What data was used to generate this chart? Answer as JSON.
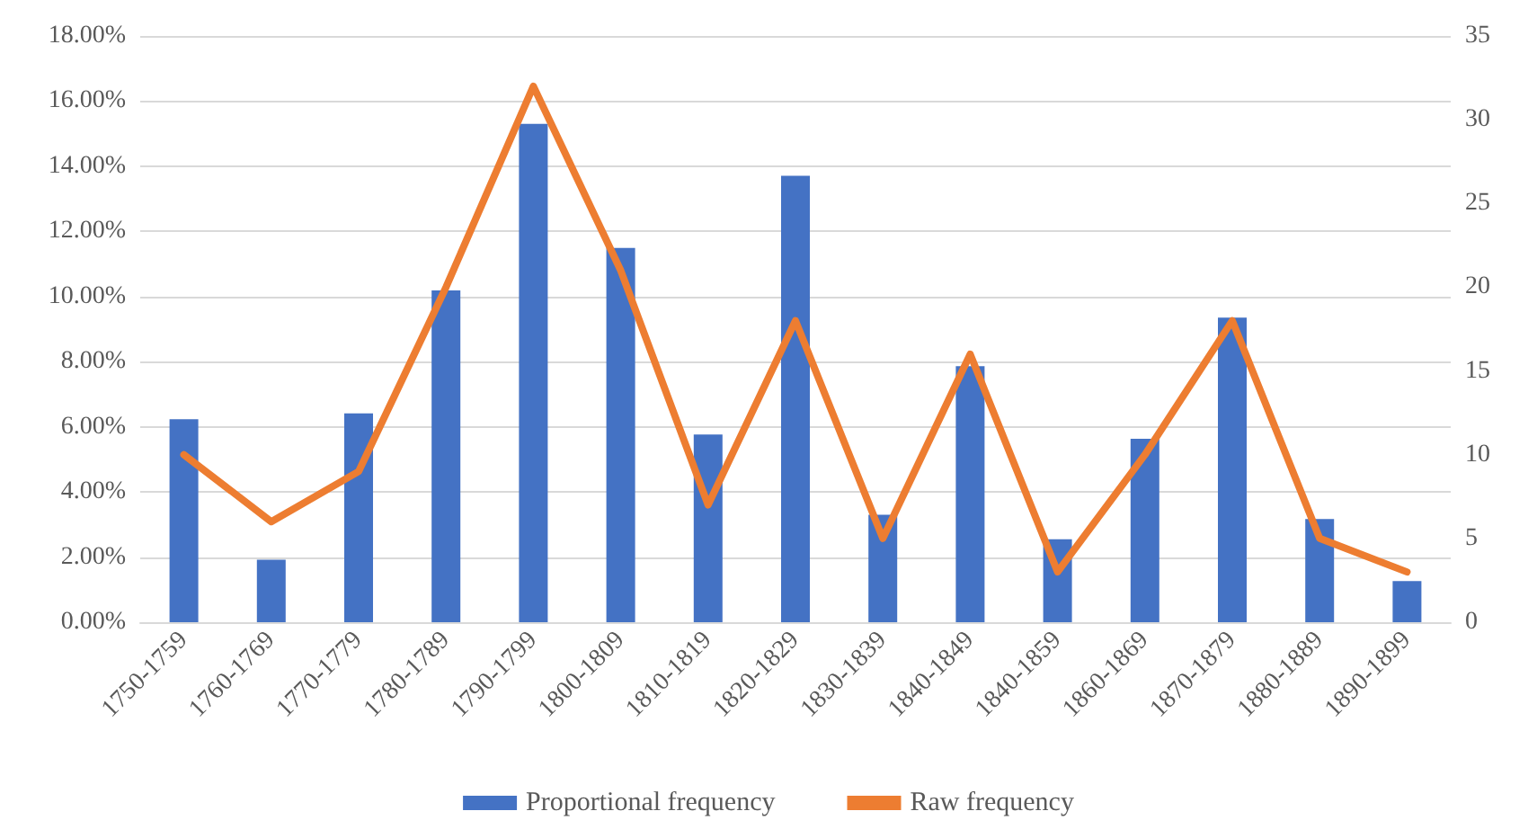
{
  "chart_data": {
    "type": "bar",
    "categories": [
      "1750-1759",
      "1760-1769",
      "1770-1779",
      "1780-1789",
      "1790-1799",
      "1800-1809",
      "1810-1819",
      "1820-1829",
      "1830-1839",
      "1840-1849",
      "1840-1859",
      "1860-1869",
      "1870-1879",
      "1880-1889",
      "1890-1899"
    ],
    "series": [
      {
        "name": "Proportional frequency",
        "color": "#4472c4",
        "values": [
          6.23,
          1.92,
          6.41,
          10.19,
          15.3,
          11.49,
          5.76,
          13.71,
          3.3,
          7.86,
          2.55,
          5.63,
          9.35,
          3.17,
          1.26
        ]
      },
      {
        "name": "Raw frequency",
        "type": "line",
        "axis": "y2",
        "color": "#ed7d31",
        "values": [
          10,
          6,
          9,
          20,
          32,
          21,
          7,
          18,
          5,
          16,
          3,
          10,
          18,
          5,
          3
        ]
      }
    ],
    "ylim": [
      0,
      18
    ],
    "yticks": [
      {
        "value": 0,
        "label": "0.00%"
      },
      {
        "value": 2,
        "label": "2.00%"
      },
      {
        "value": 4,
        "label": "4.00%"
      },
      {
        "value": 6,
        "label": "6.00%"
      },
      {
        "value": 8,
        "label": "8.00%"
      },
      {
        "value": 10,
        "label": "10.00%"
      },
      {
        "value": 12,
        "label": "12.00%"
      },
      {
        "value": 14,
        "label": "14.00%"
      },
      {
        "value": 16,
        "label": "16.00%"
      },
      {
        "value": 18,
        "label": "18.00%"
      }
    ],
    "y2lim": [
      0,
      35
    ],
    "y2ticks": [
      0,
      5,
      10,
      15,
      20,
      25,
      30,
      35
    ],
    "grid": "y",
    "legend": "bottom",
    "marker": "none",
    "line_style": "solid"
  }
}
